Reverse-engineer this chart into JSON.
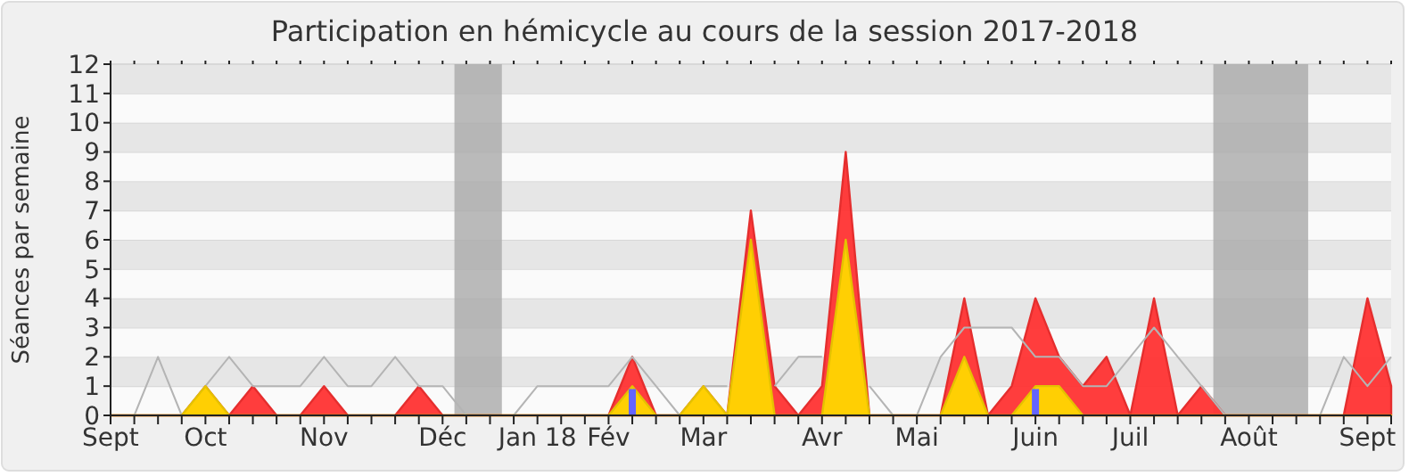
{
  "chart_data": {
    "type": "area",
    "title": "Participation en hémicycle au cours de la session 2017-2018",
    "ylabel": "Séances par semaine",
    "categories": [
      "Sept",
      null,
      null,
      null,
      "Oct",
      null,
      null,
      null,
      null,
      "Nov",
      null,
      null,
      null,
      null,
      "Déc",
      null,
      null,
      null,
      "Jan 18",
      null,
      null,
      "Fév",
      null,
      null,
      null,
      "Mar",
      null,
      null,
      null,
      null,
      "Avr",
      null,
      null,
      null,
      "Mai",
      null,
      null,
      null,
      null,
      "Juin",
      null,
      null,
      null,
      "Juil",
      null,
      null,
      null,
      null,
      "Août",
      null,
      null,
      null,
      null,
      "Sept",
      null
    ],
    "ylim": [
      0,
      12
    ],
    "yticks": [
      0,
      1,
      2,
      3,
      4,
      5,
      6,
      7,
      8,
      9,
      10,
      11,
      12
    ],
    "grid": "y",
    "series": [
      {
        "color": "#ff3333",
        "values": [
          0,
          0,
          0,
          0,
          1,
          0,
          1,
          0,
          0,
          1,
          0,
          0,
          0,
          1,
          0,
          0,
          0,
          0,
          0,
          0,
          0,
          0,
          2,
          0,
          0,
          1,
          0,
          7,
          1,
          0,
          1,
          9,
          0,
          0,
          0,
          0,
          4,
          0,
          1,
          4,
          2,
          1,
          2,
          0,
          4,
          0,
          1,
          0,
          0,
          0,
          0,
          0,
          0,
          4,
          1
        ]
      },
      {
        "type": "line",
        "color": "#b4b4b4",
        "values": [
          0,
          0,
          2,
          0,
          1,
          2,
          1,
          1,
          1,
          2,
          1,
          1,
          2,
          1,
          1,
          0,
          0,
          0,
          1,
          1,
          1,
          1,
          2,
          1,
          0,
          1,
          1,
          null,
          1,
          2,
          2,
          null,
          1,
          0,
          0,
          2,
          3,
          3,
          3,
          2,
          2,
          1,
          1,
          2,
          3,
          2,
          1,
          0,
          0,
          0,
          0,
          0,
          2,
          1,
          2
        ]
      },
      {
        "type": "area",
        "color": "#ffd700",
        "values": [
          0,
          0,
          0,
          0,
          1,
          0,
          0,
          0,
          0,
          0,
          0,
          0,
          0,
          0,
          0,
          0,
          0,
          0,
          0,
          0,
          0,
          0,
          1,
          0,
          0,
          1,
          0,
          6,
          0,
          0,
          0,
          6,
          0,
          0,
          0,
          0,
          2,
          0,
          0,
          1,
          1,
          0,
          0,
          0,
          0,
          0,
          0,
          0,
          0,
          0,
          0,
          0,
          0,
          0,
          0
        ]
      },
      {
        "type": "bar",
        "color": "#6464ff",
        "values": [
          null,
          null,
          null,
          null,
          null,
          null,
          null,
          null,
          null,
          null,
          null,
          null,
          null,
          null,
          null,
          null,
          null,
          null,
          null,
          null,
          null,
          null,
          0.9,
          null,
          null,
          null,
          null,
          null,
          null,
          null,
          null,
          null,
          null,
          null,
          null,
          null,
          null,
          null,
          null,
          0.9,
          null,
          null,
          null,
          null,
          null,
          null,
          null,
          null,
          null,
          null,
          null,
          null,
          null,
          null,
          null
        ]
      }
    ]
  }
}
